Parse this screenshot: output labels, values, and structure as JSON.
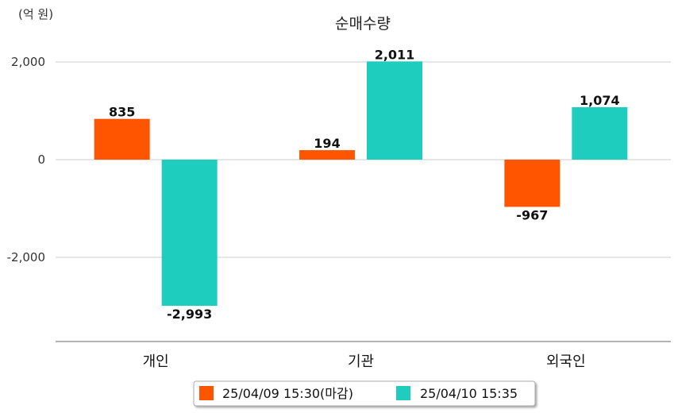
{
  "chart_data": {
    "type": "bar",
    "title": "순매수량",
    "unit_label": "(억 원)",
    "categories": [
      "개인",
      "기관",
      "외국인"
    ],
    "series": [
      {
        "name": "25/04/09 15:30(마감)",
        "color": "#FF5500",
        "values": [
          835,
          194,
          -967
        ],
        "labels": [
          "835",
          "194",
          "-967"
        ]
      },
      {
        "name": "25/04/10 15:35",
        "color": "#1ECDBE",
        "values": [
          -2993,
          2011,
          1074
        ],
        "labels": [
          "-2,993",
          "2,011",
          "1,074"
        ]
      }
    ],
    "yticks": [
      2000,
      0,
      -2000
    ],
    "ytick_labels": [
      "2,000",
      "0",
      "-2,000"
    ],
    "ylim": [
      -3700,
      2000
    ],
    "grid": true,
    "legend_position": "bottom"
  }
}
